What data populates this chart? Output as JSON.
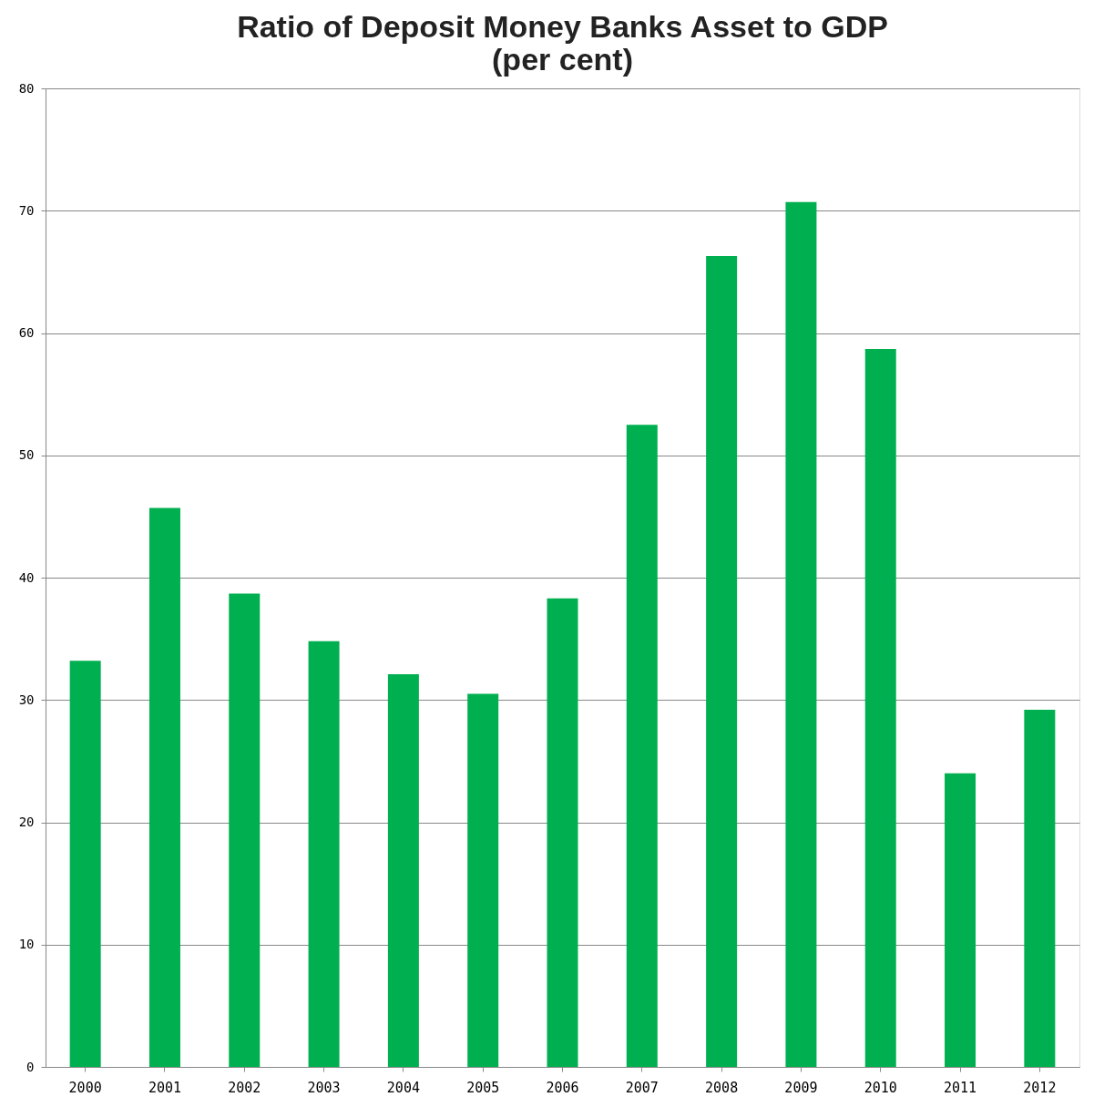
{
  "chart_data": {
    "type": "bar",
    "title": [
      "Ratio of Deposit Money Banks Asset to GDP",
      "(per cent)"
    ],
    "categories": [
      "2000",
      "2001",
      "2002",
      "2003",
      "2004",
      "2005",
      "2006",
      "2007",
      "2008",
      "2009",
      "2010",
      "2011",
      "2012"
    ],
    "values": [
      33.2,
      45.7,
      38.7,
      34.8,
      32.1,
      30.5,
      38.3,
      52.5,
      66.3,
      70.7,
      58.7,
      24.0,
      29.2
    ],
    "color": "#00b050",
    "ylim": [
      0,
      80
    ],
    "yticks": [
      0,
      10,
      20,
      30,
      40,
      50,
      60,
      70,
      80
    ],
    "grid": "y"
  }
}
